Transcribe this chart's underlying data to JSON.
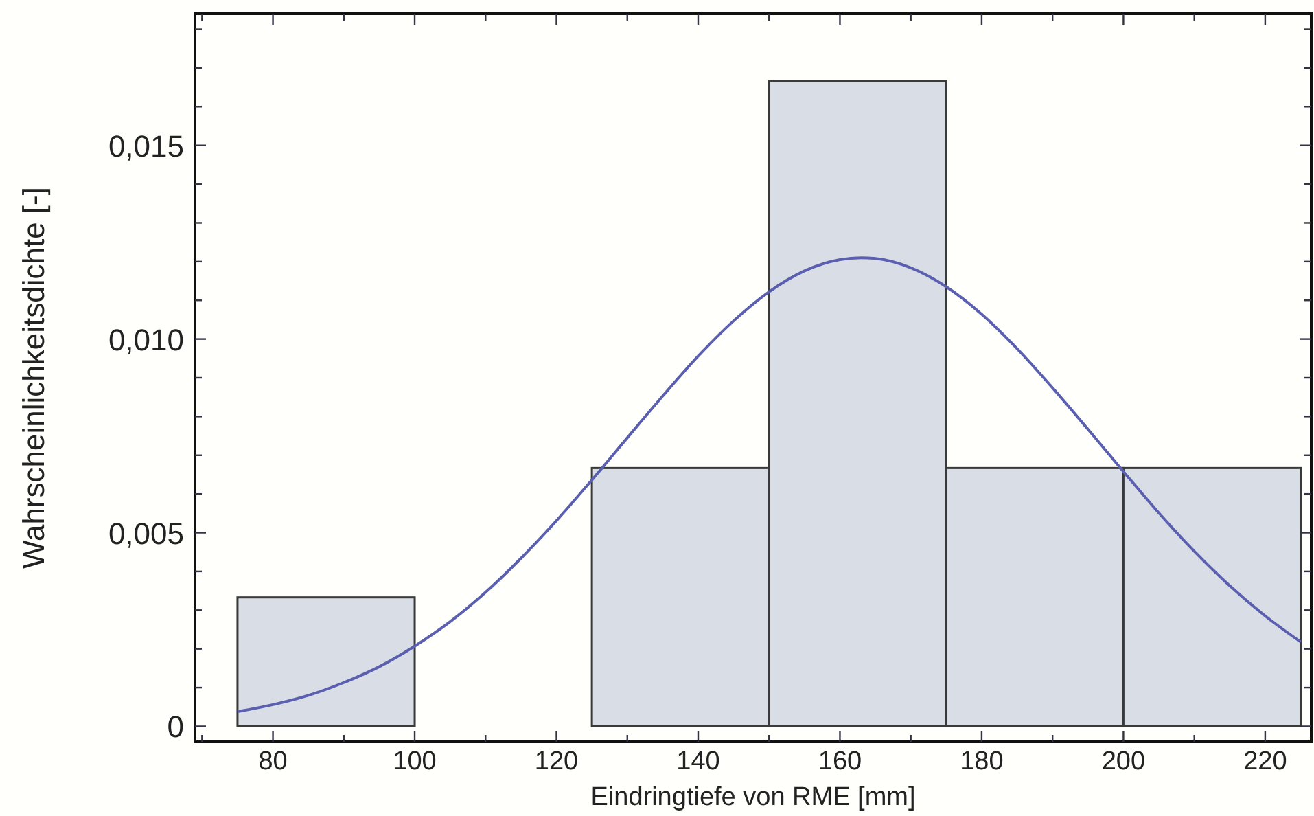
{
  "chart_data": {
    "type": "histogram",
    "xlabel": "Eindringtiefe von RME [mm]",
    "ylabel": "Wahrscheinlichkeitsdichte [-]",
    "bins": [
      75,
      100,
      125,
      150,
      175,
      200,
      225
    ],
    "values": [
      0.00333,
      0,
      0.00667,
      0.01667,
      0.00667,
      0.00667
    ],
    "color": "#d9dde6",
    "series": [
      {
        "type": "line",
        "color": "#5b5fb0",
        "x": [
          75,
          80,
          85,
          90,
          95,
          100,
          105,
          110,
          115,
          120,
          125,
          130,
          135,
          140,
          145,
          150,
          155,
          160,
          163,
          165,
          170,
          175,
          180,
          185,
          190,
          195,
          200,
          205,
          210,
          215,
          220,
          225
        ],
        "values": [
          0.00038,
          0.00056,
          0.0008,
          0.00113,
          0.00154,
          0.00207,
          0.0027,
          0.00346,
          0.00434,
          0.00531,
          0.00636,
          0.00745,
          0.00853,
          0.00956,
          0.01047,
          0.01122,
          0.01176,
          0.01205,
          0.0121,
          0.01208,
          0.01184,
          0.01135,
          0.01064,
          0.00975,
          0.00874,
          0.00767,
          0.00658,
          0.00551,
          0.00452,
          0.00363,
          0.00285,
          0.00218
        ]
      }
    ],
    "xlim": [
      69,
      226.5
    ],
    "ylim": [
      -0.0004,
      0.0184
    ],
    "xticks": [
      {
        "value": 70,
        "label": null
      },
      80,
      {
        "value": 90,
        "label": null
      },
      100,
      {
        "value": 110,
        "label": null
      },
      120,
      {
        "value": 130,
        "label": null
      },
      140,
      {
        "value": 150,
        "label": null
      },
      160,
      {
        "value": 170,
        "label": null
      },
      180,
      {
        "value": 190,
        "label": null
      },
      200,
      {
        "value": 210,
        "label": null
      },
      220
    ],
    "yticks": [
      {
        "value": 0,
        "label": "0"
      },
      {
        "value": 0.001,
        "label": null
      },
      {
        "value": 0.002,
        "label": null
      },
      {
        "value": 0.003,
        "label": null
      },
      {
        "value": 0.004,
        "label": null
      },
      {
        "value": 0.005,
        "label": "0,005"
      },
      {
        "value": 0.006,
        "label": null
      },
      {
        "value": 0.007,
        "label": null
      },
      {
        "value": 0.008,
        "label": null
      },
      {
        "value": 0.009,
        "label": null
      },
      {
        "value": 0.01,
        "label": "0,010"
      },
      {
        "value": 0.011,
        "label": null
      },
      {
        "value": 0.012,
        "label": null
      },
      {
        "value": 0.013,
        "label": null
      },
      {
        "value": 0.014,
        "label": null
      },
      {
        "value": 0.015,
        "label": "0,015"
      },
      {
        "value": 0.016,
        "label": null
      },
      {
        "value": 0.017,
        "label": null
      },
      {
        "value": 0.018,
        "label": null
      }
    ],
    "grid": false
  }
}
